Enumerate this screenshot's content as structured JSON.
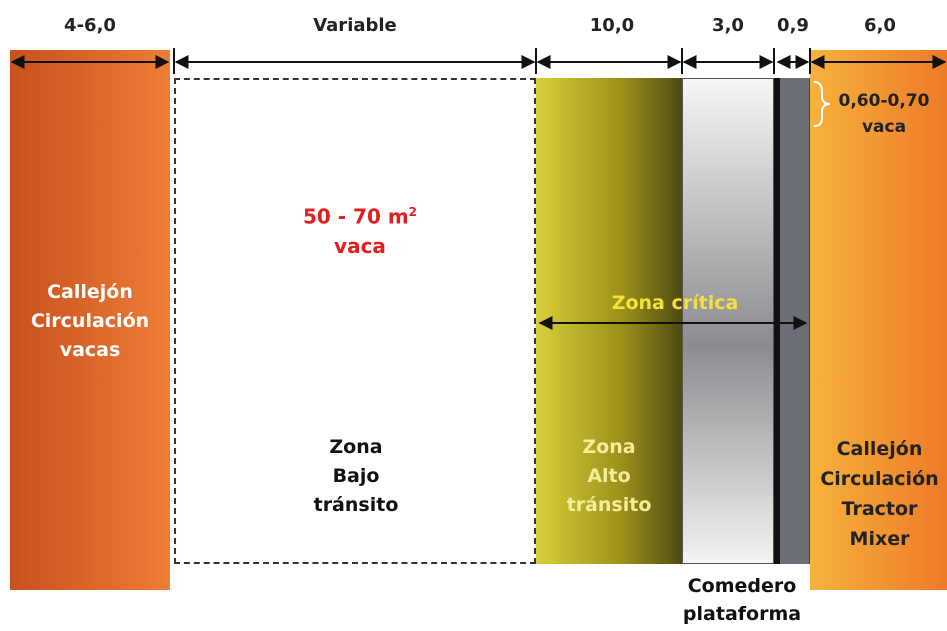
{
  "dimensions": {
    "d1": "4-6,0",
    "d2": "Variable",
    "d3": "10,0",
    "d4": "3,0",
    "d5": "0,9",
    "d6": "6,0"
  },
  "cow_alley": {
    "line1": "Callejón",
    "line2": "Circulación",
    "line3": "vacas"
  },
  "area": {
    "value": "50 - 70 m",
    "sup": "2",
    "unit": "vaca"
  },
  "low_traffic": {
    "line1": "Zona",
    "line2": "Bajo",
    "line3": "tránsito"
  },
  "critical_zone": "Zona crítica",
  "high_traffic": {
    "line1": "Zona",
    "line2": "Alto",
    "line3": "tránsito"
  },
  "feeder": {
    "line1": "Comedero",
    "line2": "plataforma"
  },
  "feed_width": {
    "value": "0,60-0,70",
    "unit": "vaca"
  },
  "tractor_alley": {
    "line1": "Callejón",
    "line2": "Circulación",
    "line3": "Tractor",
    "line4": "Mixer"
  },
  "colors": {
    "orange": "#d9622a",
    "orange_light": "#f5a23a",
    "olive": "#b5ac1e",
    "red_text": "#e02020",
    "yellow_text": "#f2e23a"
  }
}
